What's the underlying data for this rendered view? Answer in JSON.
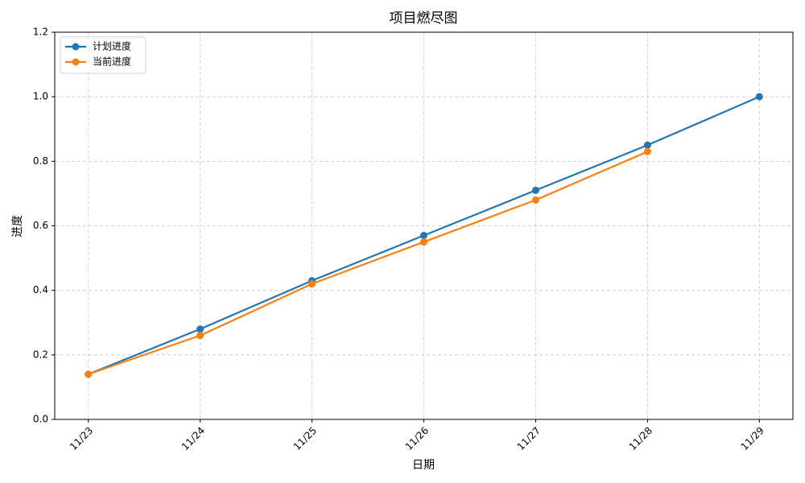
{
  "chart_data": {
    "type": "line",
    "title": "项目燃尽图",
    "x_label": "日期",
    "y_label": "进度",
    "categories": [
      "11/23",
      "11/24",
      "11/25",
      "11/26",
      "11/27",
      "11/28",
      "11/29"
    ],
    "series": [
      {
        "name": "计划进度",
        "color": "#1f77b4",
        "values": [
          0.14,
          0.28,
          0.43,
          0.57,
          0.71,
          0.85,
          1.0
        ]
      },
      {
        "name": "当前进度",
        "color": "#ff7f0e",
        "values": [
          0.14,
          0.26,
          0.42,
          0.55,
          0.68,
          0.83,
          null
        ]
      }
    ],
    "ylim": [
      0,
      1.2
    ],
    "yticks": [
      {
        "value": 0,
        "label": "0.0"
      },
      0.2,
      0.4,
      0.6,
      0.8,
      {
        "value": 1,
        "label": "1.0"
      },
      1.2
    ],
    "grid": true,
    "legend": "upper-left"
  }
}
